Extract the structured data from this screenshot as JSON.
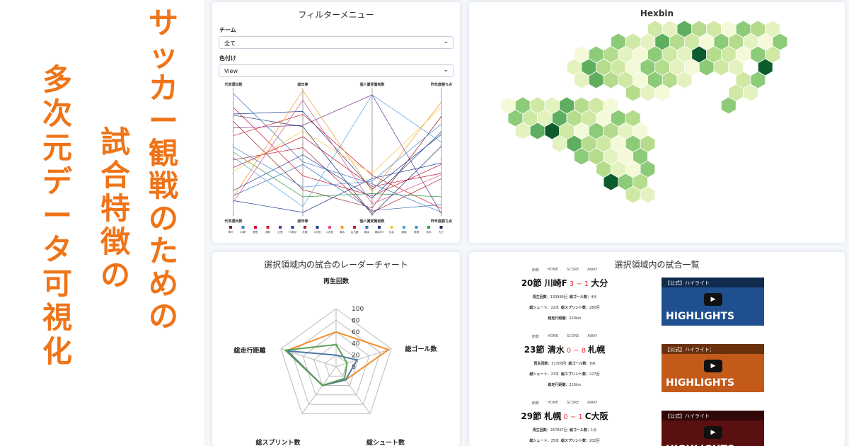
{
  "banner": {
    "col1": [
      "サ",
      "ッ",
      "カ",
      "ー",
      "観",
      "戦",
      "の",
      "た",
      "め",
      "の"
    ],
    "col2": [
      "試",
      "合",
      "特",
      "徴",
      "の"
    ],
    "col3": [
      "多",
      "次",
      "元",
      "デ",
      "ー",
      "タ",
      "可",
      "視",
      "化"
    ],
    "accent": "#ef7418"
  },
  "filter": {
    "title": "フィルターメニュー",
    "team_label": "チーム",
    "team_value": "全て",
    "color_label": "色付け",
    "color_value": "View",
    "parallel": {
      "axes": [
        "代表選出数",
        "総年俸",
        "個人賞受賞者数",
        "昨年度勝ち点"
      ],
      "axes_bottom": [
        "代表選出数",
        "総年俸",
        "個人賞受賞者数",
        "昨年度勝ち点"
      ],
      "legend": [
        "神戸",
        "川崎F",
        "鹿島",
        "浦和",
        "広島",
        "FC東京",
        "札幌",
        "G大阪",
        "C大阪",
        "清水",
        "名古屋",
        "横浜",
        "横浜FM",
        "仙台",
        "湘南",
        "鳥栖",
        "松本",
        "大分"
      ],
      "legend_colors": [
        "#8b1a1a",
        "#3a78c2",
        "#c8102e",
        "#d61c1c",
        "#6a2c91",
        "#1b3f8b",
        "#b01c2e",
        "#1a3d8f",
        "#e0508c",
        "#f39a1e",
        "#c8102e",
        "#2f6db5",
        "#1c3c8c",
        "#f5c542",
        "#4fa3e0",
        "#3d8ed8",
        "#2e9b48",
        "#1b2f6b"
      ]
    }
  },
  "hexbin": {
    "title": "Hexbin"
  },
  "radar": {
    "title": "選択領域内の試合のレーダーチャート",
    "axes": [
      "再生回数",
      "総ゴール数",
      "総シュート数",
      "総スプリント数",
      "総走行距離"
    ],
    "ticks": [
      "100",
      "80",
      "60",
      "40",
      "20",
      "0"
    ],
    "series": [
      {
        "color": "#f28e2b",
        "values": [
          60,
          95,
          28,
          40,
          90
        ]
      },
      {
        "color": "#4e79a7",
        "values": [
          20,
          38,
          28,
          40,
          88
        ]
      },
      {
        "color": "#59a14f",
        "values": [
          38,
          20,
          25,
          40,
          92
        ]
      }
    ]
  },
  "matches": {
    "title": "選択領域内の試合一覧",
    "head": [
      "節数",
      "HOME",
      "SCORE",
      "AWAY"
    ],
    "items": [
      {
        "round": "20節",
        "home": "川崎F",
        "score": "3 − 1",
        "away": "大分",
        "plays": "133996回",
        "goals": "4点",
        "shots": "22本",
        "sprints": "280回",
        "distance": "229km",
        "thumb_caption": "【公式】ハイライト",
        "thumb_bg": "#1f4f8f"
      },
      {
        "round": "23節",
        "home": "清水",
        "score": "0 − 8",
        "away": "札幌",
        "plays": "52308回",
        "goals": "8点",
        "shots": "23本",
        "sprints": "227回",
        "distance": "216km",
        "thumb_caption": "【公式】ハイライト：",
        "thumb_bg": "#c45a1a"
      },
      {
        "round": "29節",
        "home": "札幌",
        "score": "0 − 1",
        "away": "C大阪",
        "plays": "267867回",
        "goals": "1点",
        "shots": "25本",
        "sprints": "202回",
        "distance": "",
        "thumb_caption": "【公式】ハイライト",
        "thumb_bg": "#5a1010"
      }
    ],
    "labels": {
      "plays": "再生回数：",
      "goals": "総ゴール数：",
      "shots": "総シュート：",
      "sprints": "総スプリント数：",
      "distance": "総走行距離："
    },
    "thumb_text": "HIGHLIGHTS"
  }
}
